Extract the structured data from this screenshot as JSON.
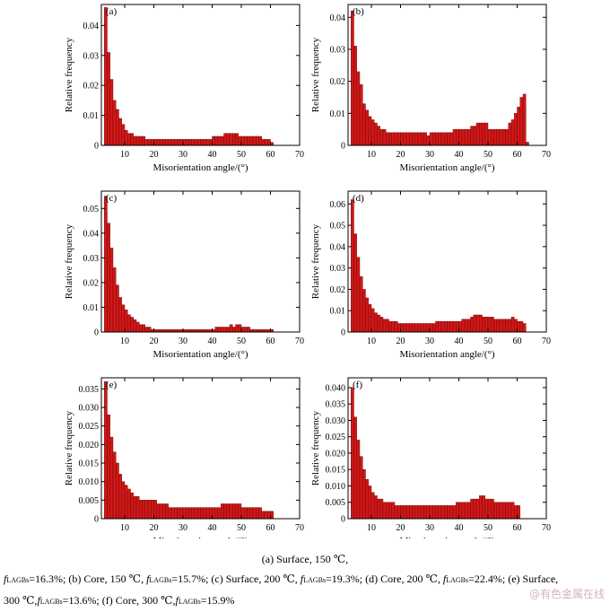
{
  "panel_layout": [
    {
      "id": "a",
      "col": 0,
      "row": 0
    },
    {
      "id": "b",
      "col": 1,
      "row": 0
    },
    {
      "id": "c",
      "col": 0,
      "row": 1
    },
    {
      "id": "d",
      "col": 1,
      "row": 1
    },
    {
      "id": "e",
      "col": 0,
      "row": 2
    },
    {
      "id": "f",
      "col": 1,
      "row": 2
    }
  ],
  "chart_data": [
    {
      "panel": "(a)",
      "type": "bar",
      "xlabel": "Misorientation angle/(°)",
      "ylabel": "Relative frequency",
      "xlim": [
        2,
        70
      ],
      "ylim": [
        0,
        0.047
      ],
      "xticks": [
        10,
        20,
        30,
        40,
        50,
        60,
        70
      ],
      "yticks": [
        0,
        0.01,
        0.02,
        0.03,
        0.04
      ],
      "ytick_labels": [
        "0",
        "0.01",
        "0.02",
        "0.03",
        "0.04"
      ],
      "bin_start": 3,
      "bin_width": 1,
      "values": [
        0.046,
        0.031,
        0.022,
        0.015,
        0.012,
        0.009,
        0.007,
        0.005,
        0.004,
        0.004,
        0.003,
        0.003,
        0.003,
        0.003,
        0.002,
        0.002,
        0.002,
        0.002,
        0.002,
        0.002,
        0.002,
        0.002,
        0.002,
        0.002,
        0.002,
        0.002,
        0.002,
        0.002,
        0.002,
        0.002,
        0.002,
        0.002,
        0.002,
        0.002,
        0.002,
        0.002,
        0.002,
        0.003,
        0.003,
        0.003,
        0.003,
        0.004,
        0.004,
        0.004,
        0.004,
        0.004,
        0.003,
        0.003,
        0.003,
        0.003,
        0.003,
        0.003,
        0.003,
        0.003,
        0.002,
        0.002,
        0.002,
        0.001
      ]
    },
    {
      "panel": "(b)",
      "type": "bar",
      "xlabel": "Misorientation angle/(°)",
      "ylabel": "Relative frequency",
      "xlim": [
        2,
        70
      ],
      "ylim": [
        0,
        0.044
      ],
      "xticks": [
        10,
        20,
        30,
        40,
        50,
        60,
        70
      ],
      "yticks": [
        0,
        0.01,
        0.02,
        0.03,
        0.04
      ],
      "ytick_labels": [
        "0",
        "0.01",
        "0.02",
        "0.03",
        "0.04"
      ],
      "bin_start": 3,
      "bin_width": 1,
      "values": [
        0.042,
        0.031,
        0.023,
        0.019,
        0.013,
        0.011,
        0.009,
        0.008,
        0.007,
        0.006,
        0.005,
        0.005,
        0.004,
        0.004,
        0.004,
        0.004,
        0.004,
        0.004,
        0.004,
        0.004,
        0.004,
        0.004,
        0.004,
        0.004,
        0.004,
        0.004,
        0.003,
        0.004,
        0.004,
        0.004,
        0.004,
        0.004,
        0.004,
        0.004,
        0.004,
        0.005,
        0.005,
        0.005,
        0.005,
        0.005,
        0.005,
        0.006,
        0.006,
        0.007,
        0.007,
        0.007,
        0.007,
        0.005,
        0.005,
        0.005,
        0.005,
        0.005,
        0.005,
        0.005,
        0.007,
        0.008,
        0.01,
        0.012,
        0.015,
        0.016,
        0.001
      ]
    },
    {
      "panel": "(c)",
      "type": "bar",
      "xlabel": "Misorientation angle/(°)",
      "ylabel": "Relative frequency",
      "xlim": [
        2,
        70
      ],
      "ylim": [
        0,
        0.057
      ],
      "xticks": [
        10,
        20,
        30,
        40,
        50,
        60,
        70
      ],
      "yticks": [
        0,
        0.01,
        0.02,
        0.03,
        0.04,
        0.05
      ],
      "ytick_labels": [
        "0",
        "0.01",
        "0.02",
        "0.03",
        "0.04",
        "0.05"
      ],
      "bin_start": 3,
      "bin_width": 1,
      "values": [
        0.055,
        0.044,
        0.034,
        0.026,
        0.019,
        0.014,
        0.011,
        0.009,
        0.007,
        0.006,
        0.005,
        0.004,
        0.003,
        0.003,
        0.002,
        0.002,
        0.001,
        0.001,
        0.001,
        0.001,
        0.001,
        0.001,
        0.001,
        0.001,
        0.001,
        0.001,
        0.001,
        0.001,
        0.001,
        0.001,
        0.001,
        0.001,
        0.001,
        0.001,
        0.001,
        0.001,
        0.001,
        0.001,
        0.002,
        0.002,
        0.002,
        0.002,
        0.002,
        0.003,
        0.002,
        0.003,
        0.003,
        0.002,
        0.002,
        0.002,
        0.001,
        0.001,
        0.001,
        0.001,
        0.001,
        0.001,
        0.001,
        0.001
      ]
    },
    {
      "panel": "(d)",
      "type": "bar",
      "xlabel": "Misorientation angle/(°)",
      "ylabel": "Relative frequency",
      "xlim": [
        2,
        70
      ],
      "ylim": [
        0,
        0.066
      ],
      "xticks": [
        10,
        20,
        30,
        40,
        50,
        60,
        70
      ],
      "yticks": [
        0,
        0.01,
        0.02,
        0.03,
        0.04,
        0.05,
        0.06
      ],
      "ytick_labels": [
        "0",
        "0.01",
        "0.02",
        "0.03",
        "0.04",
        "0.05",
        "0.06"
      ],
      "bin_start": 3,
      "bin_width": 1,
      "values": [
        0.062,
        0.046,
        0.035,
        0.026,
        0.02,
        0.016,
        0.013,
        0.011,
        0.009,
        0.008,
        0.007,
        0.006,
        0.006,
        0.005,
        0.005,
        0.005,
        0.004,
        0.004,
        0.004,
        0.004,
        0.004,
        0.004,
        0.004,
        0.004,
        0.004,
        0.004,
        0.004,
        0.004,
        0.004,
        0.005,
        0.005,
        0.005,
        0.005,
        0.005,
        0.005,
        0.005,
        0.005,
        0.005,
        0.006,
        0.006,
        0.006,
        0.007,
        0.008,
        0.008,
        0.008,
        0.007,
        0.007,
        0.007,
        0.007,
        0.006,
        0.006,
        0.006,
        0.006,
        0.006,
        0.006,
        0.007,
        0.006,
        0.005,
        0.005,
        0.004
      ]
    },
    {
      "panel": "(e)",
      "type": "bar",
      "xlabel": "Misorientation angle/(°)",
      "ylabel": "Relative frequency",
      "xlim": [
        2,
        70
      ],
      "ylim": [
        0,
        0.038
      ],
      "xticks": [
        10,
        20,
        30,
        40,
        50,
        60,
        70
      ],
      "yticks": [
        0,
        0.005,
        0.01,
        0.015,
        0.02,
        0.025,
        0.03,
        0.035
      ],
      "ytick_labels": [
        "0",
        "0.005",
        "0.010",
        "0.015",
        "0.020",
        "0.025",
        "0.030",
        "0.035"
      ],
      "bin_start": 3,
      "bin_width": 1,
      "values": [
        0.037,
        0.028,
        0.022,
        0.018,
        0.015,
        0.012,
        0.01,
        0.009,
        0.008,
        0.007,
        0.006,
        0.006,
        0.005,
        0.005,
        0.005,
        0.005,
        0.005,
        0.005,
        0.004,
        0.004,
        0.004,
        0.004,
        0.003,
        0.003,
        0.003,
        0.003,
        0.003,
        0.003,
        0.003,
        0.003,
        0.003,
        0.003,
        0.003,
        0.003,
        0.003,
        0.003,
        0.003,
        0.003,
        0.003,
        0.003,
        0.004,
        0.004,
        0.004,
        0.004,
        0.004,
        0.004,
        0.004,
        0.003,
        0.003,
        0.003,
        0.003,
        0.003,
        0.003,
        0.003,
        0.002,
        0.002,
        0.002,
        0.002
      ]
    },
    {
      "panel": "(f)",
      "type": "bar",
      "xlabel": "Misorientation angle/(°)",
      "ylabel": "Relative frequency",
      "xlim": [
        2,
        70
      ],
      "ylim": [
        0,
        0.043
      ],
      "xticks": [
        10,
        20,
        30,
        40,
        50,
        60,
        70
      ],
      "yticks": [
        0,
        0.005,
        0.01,
        0.015,
        0.02,
        0.025,
        0.03,
        0.035,
        0.04
      ],
      "ytick_labels": [
        "0",
        "0.005",
        "0.010",
        "0.015",
        "0.020",
        "0.025",
        "0.030",
        "0.035",
        "0.040"
      ],
      "bin_start": 3,
      "bin_width": 1,
      "values": [
        0.04,
        0.031,
        0.024,
        0.019,
        0.015,
        0.012,
        0.01,
        0.008,
        0.007,
        0.006,
        0.006,
        0.005,
        0.005,
        0.005,
        0.005,
        0.004,
        0.004,
        0.004,
        0.004,
        0.004,
        0.004,
        0.004,
        0.004,
        0.004,
        0.004,
        0.004,
        0.004,
        0.004,
        0.004,
        0.004,
        0.004,
        0.004,
        0.004,
        0.004,
        0.004,
        0.004,
        0.005,
        0.005,
        0.005,
        0.005,
        0.005,
        0.006,
        0.006,
        0.006,
        0.007,
        0.007,
        0.006,
        0.006,
        0.006,
        0.005,
        0.005,
        0.005,
        0.005,
        0.005,
        0.005,
        0.005,
        0.004,
        0.004
      ]
    }
  ],
  "caption": {
    "line1": "(a) Surface, 150 ℃,",
    "f_symbol": "f",
    "f_subscript": "LAGBs",
    "seg_a": "=16.3%; (b) Core, 150 ℃, ",
    "seg_b": "=15.7%; (c) Surface, 200 ℃, ",
    "seg_c": "=19.3%; (d) Core, 200 ℃, ",
    "seg_d": "=22.4%; (e) Surface,",
    "seg_e": "300 ℃,",
    "seg_f": "=13.6%; (f) Core, 300 ℃,",
    "seg_g": "=15.9%"
  },
  "watermark": "@有色金属在线",
  "colors": {
    "bar_fill": "#d01818",
    "bar_stroke": "#6a0000",
    "axis": "#000000"
  }
}
